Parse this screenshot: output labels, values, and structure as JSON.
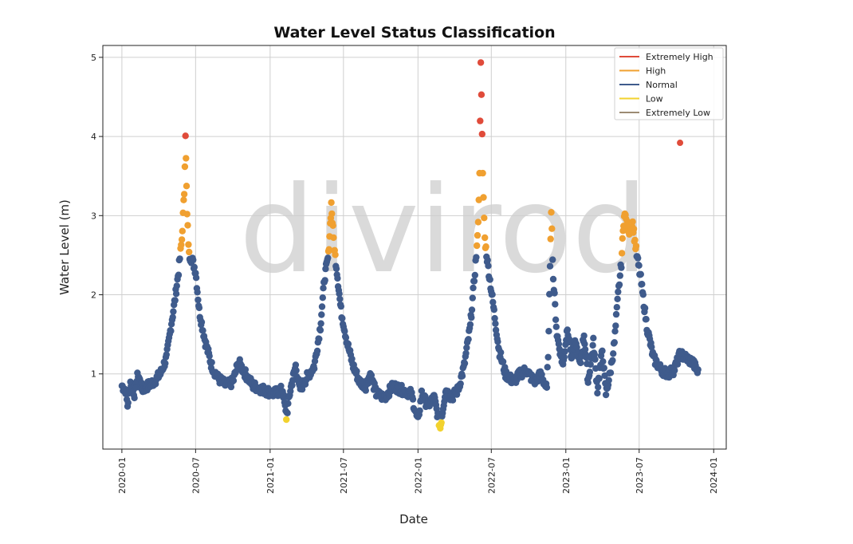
{
  "chart_data": {
    "type": "scatter",
    "title": "Water Level Status Classification",
    "xlabel": "Date",
    "ylabel": "Water Level (m)",
    "xlim": [
      "2019-11-15",
      "2024-02-01"
    ],
    "ylim": [
      0.05,
      5.15
    ],
    "x_ticks": [
      "2020-01",
      "2020-07",
      "2021-01",
      "2021-07",
      "2022-01",
      "2022-07",
      "2023-01",
      "2023-07",
      "2024-01"
    ],
    "y_ticks": [
      1,
      2,
      3,
      4,
      5
    ],
    "grid": true,
    "legend_position": "top-right",
    "watermark": "divirod",
    "series": [
      {
        "name": "Extremely High",
        "color": "#e04b3a"
      },
      {
        "name": "High",
        "color": "#f0a030"
      },
      {
        "name": "Normal",
        "color": "#3f5b8c"
      },
      {
        "name": "Low",
        "color": "#f2d22e"
      },
      {
        "name": "Extremely Low",
        "color": "#9c8b73"
      }
    ],
    "thresholds": {
      "extremely_high": 3.8,
      "high": 2.5,
      "low": 0.45,
      "extremely_low": 0.2
    },
    "profile": [
      [
        "2020-01-01",
        0.85
      ],
      [
        "2020-01-10",
        0.8
      ],
      [
        "2020-01-15",
        0.6
      ],
      [
        "2020-01-22",
        0.9
      ],
      [
        "2020-02-01",
        0.75
      ],
      [
        "2020-02-10",
        1.0
      ],
      [
        "2020-02-20",
        0.8
      ],
      [
        "2020-03-05",
        0.85
      ],
      [
        "2020-03-20",
        0.9
      ],
      [
        "2020-04-05",
        1.0
      ],
      [
        "2020-04-20",
        1.2
      ],
      [
        "2020-05-01",
        1.6
      ],
      [
        "2020-05-10",
        1.9
      ],
      [
        "2020-05-20",
        2.3
      ],
      [
        "2020-05-28",
        2.7
      ],
      [
        "2020-06-03",
        3.3
      ],
      [
        "2020-06-06",
        4.05
      ],
      [
        "2020-06-10",
        3.0
      ],
      [
        "2020-06-15",
        2.5
      ],
      [
        "2020-06-22",
        2.45
      ],
      [
        "2020-07-01",
        2.3
      ],
      [
        "2020-07-10",
        1.8
      ],
      [
        "2020-07-25",
        1.4
      ],
      [
        "2020-08-10",
        1.1
      ],
      [
        "2020-08-25",
        0.95
      ],
      [
        "2020-09-15",
        0.85
      ],
      [
        "2020-10-01",
        0.9
      ],
      [
        "2020-10-15",
        1.15
      ],
      [
        "2020-11-01",
        1.0
      ],
      [
        "2020-11-20",
        0.85
      ],
      [
        "2020-12-15",
        0.8
      ],
      [
        "2021-01-10",
        0.75
      ],
      [
        "2021-02-01",
        0.8
      ],
      [
        "2021-02-10",
        0.45
      ],
      [
        "2021-02-20",
        0.8
      ],
      [
        "2021-03-05",
        1.1
      ],
      [
        "2021-03-15",
        0.8
      ],
      [
        "2021-04-01",
        0.95
      ],
      [
        "2021-04-20",
        1.1
      ],
      [
        "2021-05-05",
        1.6
      ],
      [
        "2021-05-15",
        2.2
      ],
      [
        "2021-05-25",
        2.5
      ],
      [
        "2021-06-01",
        3.15
      ],
      [
        "2021-06-08",
        2.6
      ],
      [
        "2021-06-15",
        2.3
      ],
      [
        "2021-06-25",
        1.8
      ],
      [
        "2021-07-10",
        1.4
      ],
      [
        "2021-07-25",
        1.1
      ],
      [
        "2021-08-10",
        0.9
      ],
      [
        "2021-08-25",
        0.85
      ],
      [
        "2021-09-05",
        1.0
      ],
      [
        "2021-09-20",
        0.75
      ],
      [
        "2021-10-10",
        0.7
      ],
      [
        "2021-11-01",
        0.85
      ],
      [
        "2021-11-20",
        0.8
      ],
      [
        "2021-12-15",
        0.75
      ],
      [
        "2022-01-01",
        0.4
      ],
      [
        "2022-01-10",
        0.75
      ],
      [
        "2022-01-25",
        0.6
      ],
      [
        "2022-02-10",
        0.7
      ],
      [
        "2022-02-25",
        0.32
      ],
      [
        "2022-03-10",
        0.8
      ],
      [
        "2022-03-25",
        0.7
      ],
      [
        "2022-04-10",
        0.8
      ],
      [
        "2022-04-25",
        1.1
      ],
      [
        "2022-05-10",
        1.6
      ],
      [
        "2022-05-20",
        2.2
      ],
      [
        "2022-05-28",
        2.7
      ],
      [
        "2022-06-02",
        3.5
      ],
      [
        "2022-06-05",
        4.98
      ],
      [
        "2022-06-10",
        3.5
      ],
      [
        "2022-06-15",
        2.7
      ],
      [
        "2022-06-22",
        2.4
      ],
      [
        "2022-07-05",
        1.9
      ],
      [
        "2022-07-20",
        1.3
      ],
      [
        "2022-08-05",
        1.0
      ],
      [
        "2022-08-25",
        0.9
      ],
      [
        "2022-09-10",
        1.0
      ],
      [
        "2022-09-25",
        1.05
      ],
      [
        "2022-10-15",
        0.9
      ],
      [
        "2022-11-01",
        1.0
      ],
      [
        "2022-11-15",
        0.8
      ],
      [
        "2022-11-20",
        1.5
      ],
      [
        "2022-11-23",
        2.4
      ],
      [
        "2022-11-26",
        3.1
      ],
      [
        "2022-12-01",
        2.2
      ],
      [
        "2022-12-10",
        1.5
      ],
      [
        "2022-12-25",
        1.1
      ],
      [
        "2023-01-05",
        1.6
      ],
      [
        "2023-01-15",
        1.2
      ],
      [
        "2023-01-25",
        1.4
      ],
      [
        "2023-02-05",
        1.1
      ],
      [
        "2023-02-15",
        1.5
      ],
      [
        "2023-02-25",
        0.9
      ],
      [
        "2023-03-10",
        1.4
      ],
      [
        "2023-03-20",
        0.8
      ],
      [
        "2023-04-01",
        1.3
      ],
      [
        "2023-04-10",
        0.75
      ],
      [
        "2023-04-20",
        1.0
      ],
      [
        "2023-05-01",
        1.4
      ],
      [
        "2023-05-10",
        2.0
      ],
      [
        "2023-05-18",
        2.4
      ],
      [
        "2023-05-25",
        3.05
      ],
      [
        "2023-06-05",
        2.8
      ],
      [
        "2023-06-15",
        2.9
      ],
      [
        "2023-06-25",
        2.5
      ],
      [
        "2023-07-05",
        2.2
      ],
      [
        "2023-07-20",
        1.6
      ],
      [
        "2023-08-05",
        1.2
      ],
      [
        "2023-08-25",
        1.05
      ],
      [
        "2023-09-10",
        1.0
      ],
      [
        "2023-09-25",
        1.05
      ],
      [
        "2023-10-10",
        1.25
      ],
      [
        "2023-10-25",
        1.2
      ],
      [
        "2023-11-10",
        1.15
      ],
      [
        "2023-11-25",
        1.0
      ]
    ],
    "isolated_points": [
      {
        "x": "2023-10-10",
        "y": 3.92,
        "series": "Extremely High"
      }
    ]
  }
}
